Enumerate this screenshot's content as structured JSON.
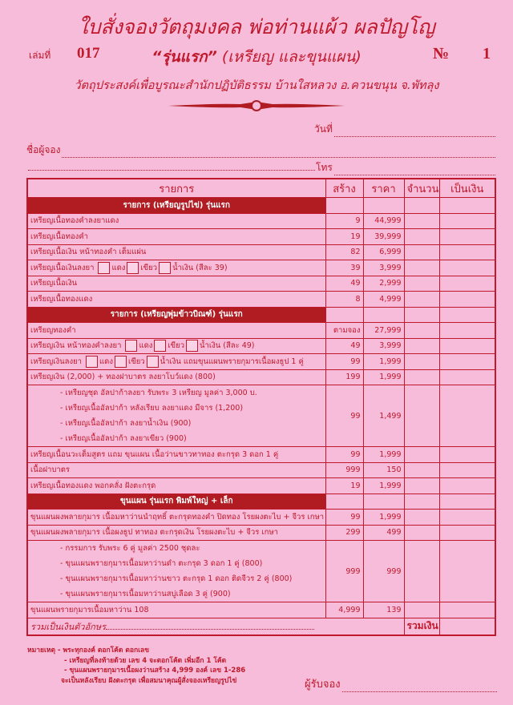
{
  "header": {
    "title": "ใบสั่งจองวัตถุมงคล พ่อท่านแผ้ว ผลปัญโญ",
    "book_label": "เล่มที่",
    "book_number": "017",
    "subtitle_main": "“รุ่นแรก”",
    "subtitle_rest": " (เหรียญ และขุนแผน)",
    "no_label": "№",
    "no_value": "1",
    "purpose": "วัตถุประสงค์เพื่อบูรณะสำนักปฏิบัติธรรม บ้านใสหลวง อ.ควนขนุน จ.พัทลุง"
  },
  "form": {
    "date_label": "วันที่",
    "name_label": "ชื่อผู้จอง",
    "phone_label": "โทร"
  },
  "table": {
    "headers": [
      "รายการ",
      "สร้าง",
      "ราคา",
      "จำนวน",
      "เป็นเงิน"
    ],
    "rows": [
      {
        "type": "section",
        "label": "รายการ (เหรียญรูปไข่) รุ่นแรก"
      },
      {
        "type": "item",
        "parts": [
          "เหรียญเนื้อทองคำลงยาแดง"
        ],
        "built": "9",
        "price": "44,999"
      },
      {
        "type": "item",
        "parts": [
          "เหรียญเนื้อทองคำ"
        ],
        "built": "19",
        "price": "39,999"
      },
      {
        "type": "item",
        "parts": [
          "เหรียญเนื้อเงิน หน้าทองคำ เต็มแผ่น"
        ],
        "built": "82",
        "price": "6,999"
      },
      {
        "type": "item",
        "parts": [
          "เหรียญเนื้อเงินลงยา ",
          "[]",
          "แดง",
          "[]",
          "เขียว",
          "[]",
          "น้ำเงิน  (สีละ 39)"
        ],
        "built": "39",
        "price": "3,999"
      },
      {
        "type": "item",
        "parts": [
          "เหรียญเนื้อเงิน"
        ],
        "built": "49",
        "price": "2,999"
      },
      {
        "type": "item",
        "parts": [
          "เหรียญเนื้อทองแดง"
        ],
        "built": "8",
        "price": "4,999"
      },
      {
        "type": "section",
        "label": "รายการ (เหรียญพุ่มข้าวบิณฑ์) รุ่นแรก"
      },
      {
        "type": "item",
        "parts": [
          "เหรียญทองคำ"
        ],
        "built": "ตามจอง",
        "price": "27,999"
      },
      {
        "type": "item",
        "parts": [
          "เหรียญเงิน หน้าทองคำลงยา ",
          "[]",
          "แดง",
          "[]",
          "เขียว",
          "[]",
          "น้ำเงิน  (สีละ 49)"
        ],
        "built": "49",
        "price": "3,999"
      },
      {
        "type": "item",
        "parts": [
          "เหรียญเงินลงยา ",
          "[]",
          "แดง",
          "[]",
          "เขียว",
          "[]",
          "น้ำเงิน  แถมขุนแผนพรายกุมารเนื้อผงธูป 1 คู่"
        ],
        "built": "99",
        "price": "1,999"
      },
      {
        "type": "item",
        "parts": [
          "เหรียญเงิน (2,000) + ทองฝาบาตร ลงยาโบว์แดง (800)"
        ],
        "built": "199",
        "price": "1,999"
      },
      {
        "type": "multi",
        "lines": [
          "- เหรียญชุด อัลปาก้าลงยา รับพระ 3 เหรียญ มูลค่า 3,000 บ.",
          "- เหรียญเนื้ออัลปาก้า หลังเรียบ ลงยาแดง มีจาร (1,200)",
          "- เหรียญเนื้ออัลปาก้า ลงยาน้ำเงิน (900)",
          "- เหรียญเนื้ออัลปาก้า ลงยาเขียว (900)"
        ],
        "built": "99",
        "price": "1,499"
      },
      {
        "type": "item",
        "parts": [
          "เหรียญเนื้อนวะเต็มสูตร แถม ขุนแผน เนื้อว่านขาวทาทอง ตะกรุด 3 ดอก 1 คู่"
        ],
        "built": "99",
        "price": "1,999"
      },
      {
        "type": "item",
        "parts": [
          "เนื้อฝาบาตร"
        ],
        "built": "999",
        "price": "150"
      },
      {
        "type": "item",
        "parts": [
          "เหรียญเนื้อทองแดง พอกคลั่ง ฝังตะกรุด"
        ],
        "built": "19",
        "price": "1,999"
      },
      {
        "type": "section",
        "label": "ขุนแผน รุ่นแรก พิมพ์ใหญ่ + เล็ก"
      },
      {
        "type": "item",
        "parts": [
          "ขุนแผนผงพลายกุมาร เนื้อมหาว่านนำฤทธิ์ ตะกรุดทองคำ ปิดทอง โรยผงตะไบ + จีวร เกษา"
        ],
        "built": "99",
        "price": "1,999"
      },
      {
        "type": "item",
        "parts": [
          "ขุนแผนผงพลายกุมาร เนื้อผงธูป ทาทอง ตะกรุดเงิน โรยผงตะไบ + จีวร เกษา"
        ],
        "built": "299",
        "price": "499"
      },
      {
        "type": "multi",
        "lines": [
          "- กรรมการ รับพระ 6 คู่ มูลค่า 2500 ชุดละ",
          "- ขุนแผนพรายกุมารเนื้อมหาว่านดำ ตะกรุด 3 ดอก 1 คู่ (800)",
          "- ขุนแผนพรายกุมารเนื้อมหาว่านขาว ตะกรุด 1 ดอก ติดจีวร 2 คู่ (800)",
          "- ขุนแผนพรายกุมารเนื้อมหาว่านสบู่เลือด 3 คู่ (900)"
        ],
        "built": "999",
        "price": "999"
      },
      {
        "type": "item",
        "parts": [
          "ขุนแผนพรายกุมารเนื้อมหาว่าน 108"
        ],
        "built": "4,999",
        "price": "139"
      }
    ],
    "total_words_label": "รวมเป็นเงินตัวอักษร",
    "total_label": "รวมเงิน"
  },
  "notes": {
    "label": "หมายเหตุ",
    "lines": [
      "- พระทุกองค์ ตอกโค้ด ตอกเลข",
      "- เหรียญที่ลงท้ายด้วย เลข 4 จะตอกโค้ด เพิ่มอีก 1 โค้ด",
      "- ขุนแผนพรายกุมารเนื้อผงว่านสร้าง 4,999 องค์ เลข 1-286",
      "จะเป็นหลังเรียบ ฝังตะกรุด เพื่อสมนาคุณผู้สั่งจองเหรียญรูปไข่"
    ]
  },
  "receiver_label": "ผู้รับจอง",
  "colors": {
    "background": "#f6bcd9",
    "ink": "#c0182c",
    "section_fill": "#b01c22"
  }
}
